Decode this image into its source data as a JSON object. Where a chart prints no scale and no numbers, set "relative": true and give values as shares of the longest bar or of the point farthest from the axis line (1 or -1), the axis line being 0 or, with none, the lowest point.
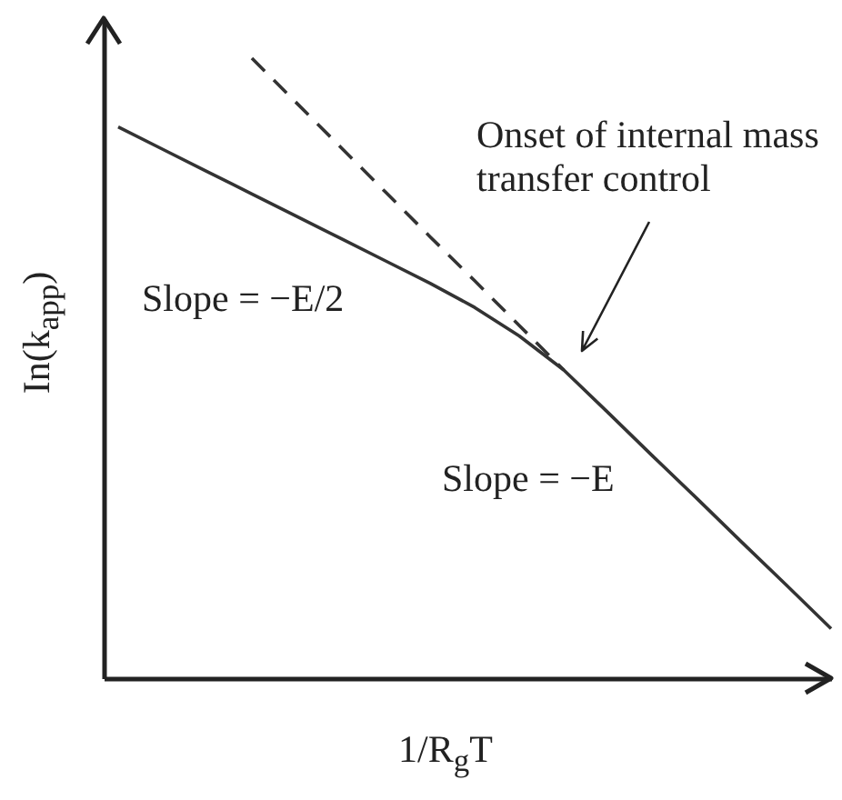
{
  "chart_data": {
    "type": "line",
    "relative": true,
    "xlabel": "1/R$_{g}$T",
    "ylabel": "In(k$_{app}$)",
    "line_style": "solid",
    "categories": [
      null,
      null,
      null,
      null,
      null,
      null,
      null,
      null,
      null,
      null,
      null,
      null,
      null,
      null,
      null,
      null,
      null
    ],
    "series": [
      {
        "color": "#333333",
        "values": [
          0.889,
          0.853,
          0.817,
          0.781,
          0.745,
          0.709,
          0.673,
          0.637,
          0.598,
          0.552,
          0.497,
          0.428,
          0.358,
          0.289,
          0.219,
          0.15,
          0.08
        ]
      },
      {
        "color": "#333333",
        "line_style": "dashed",
        "values": [
          null,
          null,
          null,
          1.0,
          0.928,
          0.856,
          0.784,
          0.712,
          0.641,
          0.569,
          0.497,
          null,
          null,
          null,
          null,
          null,
          null
        ]
      }
    ],
    "annotations": [
      "Onset of internal mass transfer control",
      "Slope = −E/2",
      "Slope = −E"
    ]
  }
}
